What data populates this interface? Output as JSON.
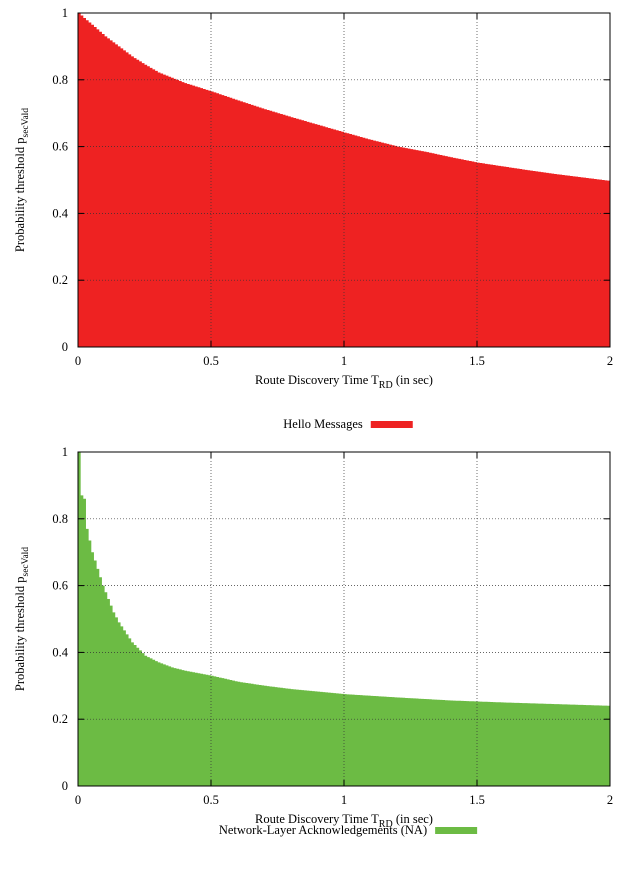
{
  "chart_data": [
    {
      "type": "area",
      "render_style": "histogram-steps",
      "xlabel_main": "Route Discovery Time T",
      "xlabel_sub": "RD",
      "xlabel_suffix": " (in sec)",
      "ylabel_main": "Probability threshold p",
      "ylabel_sub": "secVald",
      "xlim": [
        0,
        2
      ],
      "ylim": [
        0,
        1
      ],
      "xticks": [
        "0",
        "0.5",
        "1",
        "1.5",
        "2"
      ],
      "yticks": [
        "0",
        "0.2",
        "0.4",
        "0.6",
        "0.8",
        "1"
      ],
      "grid": true,
      "legend_position": "bottom-center",
      "series": [
        {
          "name": "Hello Messages",
          "color": "#ee2222",
          "x": [
            0.0,
            0.02,
            0.05,
            0.1,
            0.15,
            0.2,
            0.25,
            0.3,
            0.4,
            0.5,
            0.6,
            0.7,
            0.8,
            0.9,
            1.0,
            1.1,
            1.2,
            1.3,
            1.4,
            1.5,
            1.6,
            1.7,
            1.8,
            1.9,
            2.0
          ],
          "y": [
            1.0,
            0.985,
            0.965,
            0.93,
            0.9,
            0.87,
            0.845,
            0.822,
            0.79,
            0.765,
            0.738,
            0.712,
            0.688,
            0.665,
            0.642,
            0.62,
            0.6,
            0.585,
            0.568,
            0.552,
            0.54,
            0.528,
            0.517,
            0.507,
            0.497
          ]
        }
      ]
    },
    {
      "type": "area",
      "render_style": "histogram-steps",
      "xlabel_main": "Route Discovery Time T",
      "xlabel_sub": "RD",
      "xlabel_suffix": " (in sec)",
      "ylabel_main": "Probability threshold p",
      "ylabel_sub": "secVald",
      "xlim": [
        0,
        2
      ],
      "ylim": [
        0,
        1
      ],
      "xticks": [
        "0",
        "0.5",
        "1",
        "1.5",
        "2"
      ],
      "yticks": [
        "0",
        "0.2",
        "0.4",
        "0.6",
        "0.8",
        "1"
      ],
      "grid": true,
      "legend_position": "bottom-center",
      "series": [
        {
          "name": "Network-Layer Acknowledgements (NA)",
          "color": "#6cbb44",
          "x": [
            0.0,
            0.01,
            0.02,
            0.03,
            0.05,
            0.07,
            0.09,
            0.11,
            0.13,
            0.15,
            0.2,
            0.25,
            0.3,
            0.35,
            0.4,
            0.5,
            0.6,
            0.7,
            0.8,
            1.0,
            1.2,
            1.4,
            1.6,
            1.8,
            2.0
          ],
          "y": [
            1.0,
            0.87,
            0.86,
            0.77,
            0.7,
            0.65,
            0.6,
            0.56,
            0.52,
            0.49,
            0.43,
            0.39,
            0.37,
            0.355,
            0.345,
            0.33,
            0.312,
            0.3,
            0.29,
            0.275,
            0.265,
            0.256,
            0.25,
            0.245,
            0.24
          ]
        }
      ]
    }
  ]
}
